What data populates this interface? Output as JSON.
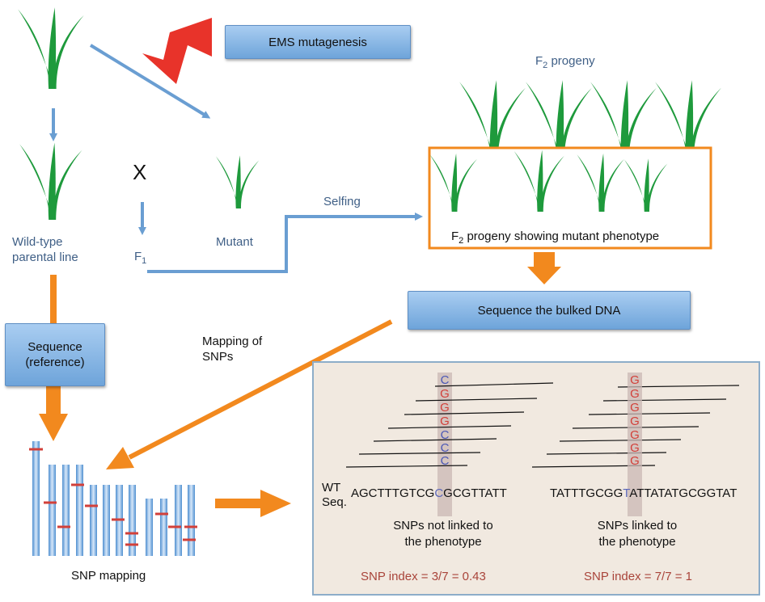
{
  "labels": {
    "ems": "EMS mutagenesis",
    "f2_progeny": "F",
    "f2_progeny_sub": "2",
    "f2_progeny_rest": " progeny",
    "cross": "X",
    "selfing": "Selfing",
    "wild_type": "Wild-type",
    "parental_line": "parental line",
    "f1": "F",
    "f1_sub": "1",
    "mutant": "Mutant",
    "f2_mutant": "F",
    "f2_mutant_sub": "2",
    "f2_mutant_rest": " progeny showing mutant phenotype",
    "sequence_bulked": "Sequence the bulked DNA",
    "mapping_snps_1": "Mapping of",
    "mapping_snps_2": "SNPs",
    "sequence_ref_1": "Sequence",
    "sequence_ref_2": "(reference)",
    "snp_mapping": "SNP mapping"
  },
  "panel": {
    "wt_seq_1": "WT",
    "wt_seq_2": "Seq.",
    "left": {
      "sequence_pre": "AGCTTTGTCG",
      "sequence_mid": "C",
      "sequence_post": "GCGTTATT",
      "reads": [
        "C",
        "G",
        "G",
        "G",
        "C",
        "C",
        "C"
      ],
      "note_1": "SNPs not linked to",
      "note_2": "the phenotype",
      "index": "SNP index = 3/7 = 0.43"
    },
    "right": {
      "sequence_pre": "TATTTGCGG",
      "sequence_mid": "T",
      "sequence_post": "ATTATATGCGGTAT",
      "reads": [
        "G",
        "G",
        "G",
        "G",
        "G",
        "G",
        "G"
      ],
      "note_1": "SNPs linked to",
      "note_2": "the phenotype",
      "index": "SNP index = 7/7 = 1"
    }
  },
  "colors": {
    "plant": "#1e9a3c",
    "blue_arrow": "#6a9ed2",
    "orange": "#f2891e",
    "red_bolt": "#e8332a",
    "snp_red": "#d2403a",
    "snp_blue": "#4a57b5",
    "wt_base": "#5965b8"
  }
}
